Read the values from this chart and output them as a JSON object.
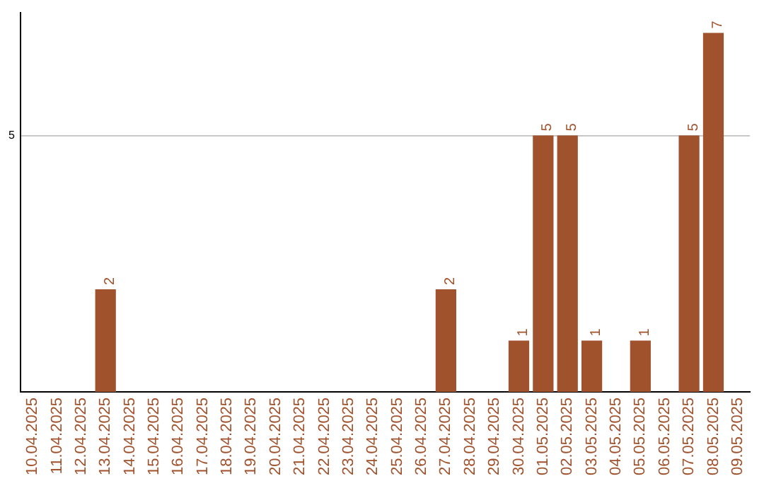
{
  "chart_data": {
    "type": "bar",
    "categories": [
      "10.04.2025",
      "11.04.2025",
      "12.04.2025",
      "13.04.2025",
      "14.04.2025",
      "15.04.2025",
      "16.04.2025",
      "17.04.2025",
      "18.04.2025",
      "19.04.2025",
      "20.04.2025",
      "21.04.2025",
      "22.04.2025",
      "23.04.2025",
      "24.04.2025",
      "25.04.2025",
      "26.04.2025",
      "27.04.2025",
      "28.04.2025",
      "29.04.2025",
      "30.04.2025",
      "01.05.2025",
      "02.05.2025",
      "03.05.2025",
      "04.05.2025",
      "05.05.2025",
      "06.05.2025",
      "07.05.2025",
      "08.05.2025",
      "09.05.2025"
    ],
    "values": [
      null,
      null,
      null,
      2,
      null,
      null,
      null,
      null,
      null,
      null,
      null,
      null,
      null,
      null,
      null,
      null,
      null,
      2,
      null,
      null,
      1,
      5,
      5,
      1,
      null,
      1,
      null,
      5,
      7,
      null
    ],
    "color": "#a0522d",
    "ylim": [
      0,
      7.4
    ],
    "yticks": [
      5
    ],
    "grid": "y",
    "data_labels": true,
    "legend": false
  }
}
